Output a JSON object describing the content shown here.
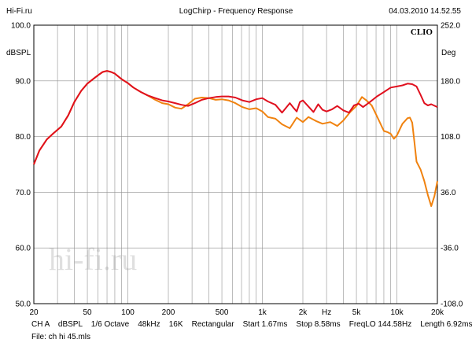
{
  "header": {
    "left": "Hi-Fi.ru",
    "center": "LogChirp - Frequency Response",
    "right": "04.03.2010 14.52.55"
  },
  "brand": "CLIO",
  "watermark": "hi-fi.ru",
  "footer": {
    "line1": "CH A    dBSPL    1/6 Octave    48kHz    16K    Rectangular    Start 1.67ms    Stop 8.58ms    FreqLO 144.58Hz    Length 6.92ms",
    "line2": "File: ch hi 45.mls"
  },
  "colors": {
    "series1": "#e0101e",
    "series2": "#f0820f",
    "grid": "#909090"
  },
  "chart_data": {
    "type": "line",
    "title": "LogChirp - Frequency Response",
    "x_scale": "log",
    "xlim": [
      20,
      20000
    ],
    "ylim": [
      50,
      100
    ],
    "y2lim": [
      -108,
      252
    ],
    "ylabel": "dBSPL",
    "y2label": "Deg",
    "x_tick_labels": [
      "20",
      "50",
      "100",
      "200",
      "500",
      "1k",
      "2k",
      "Hz",
      "5k",
      "10k",
      "20k"
    ],
    "x_tick_values": [
      20,
      50,
      100,
      200,
      500,
      1000,
      2000,
      3000,
      5000,
      10000,
      20000
    ],
    "y_tick_labels": [
      "100.0",
      "90.0",
      "80.0",
      "70.0",
      "60.0",
      "50.0"
    ],
    "y_tick_values": [
      100,
      90,
      80,
      70,
      60,
      50
    ],
    "y2_tick_labels": [
      "252.0",
      "180.0",
      "108.0",
      "36.0",
      "-36.0",
      "-108.0"
    ],
    "series": [
      {
        "name": "Red",
        "x": [
          20,
          22,
          25,
          28,
          32,
          36,
          40,
          45,
          50,
          55,
          60,
          65,
          70,
          75,
          80,
          90,
          100,
          110,
          125,
          140,
          160,
          180,
          200,
          225,
          250,
          280,
          315,
          355,
          400,
          450,
          500,
          560,
          630,
          710,
          800,
          900,
          1000,
          1100,
          1250,
          1400,
          1600,
          1700,
          1800,
          1900,
          2000,
          2200,
          2400,
          2600,
          2800,
          3000,
          3300,
          3600,
          4000,
          4400,
          4800,
          5200,
          5600,
          6300,
          7100,
          8000,
          9000,
          10000,
          11000,
          12000,
          13000,
          14000,
          15000,
          16000,
          17000,
          18000,
          20000
        ],
        "values": [
          75,
          77.5,
          79.5,
          80.6,
          81.8,
          83.8,
          86.2,
          88.2,
          89.5,
          90.3,
          91.0,
          91.6,
          91.8,
          91.6,
          91.3,
          90.3,
          89.6,
          88.8,
          88.0,
          87.4,
          86.9,
          86.5,
          86.3,
          86.0,
          85.7,
          85.5,
          86.0,
          86.6,
          86.9,
          87.1,
          87.2,
          87.2,
          87.0,
          86.5,
          86.2,
          86.7,
          86.9,
          86.3,
          85.7,
          84.3,
          86.0,
          85.2,
          84.5,
          86.2,
          86.5,
          85.4,
          84.4,
          85.8,
          84.8,
          84.5,
          84.9,
          85.5,
          84.7,
          84.3,
          85.6,
          85.9,
          85.3,
          86.2,
          87.2,
          88.0,
          88.8,
          89.0,
          89.2,
          89.5,
          89.4,
          89.0,
          87.5,
          86.0,
          85.6,
          85.8,
          85.3
        ]
      },
      {
        "name": "Orange",
        "x": [
          20,
          22,
          25,
          28,
          32,
          36,
          40,
          45,
          50,
          55,
          60,
          65,
          70,
          75,
          80,
          90,
          100,
          110,
          125,
          140,
          160,
          180,
          200,
          225,
          250,
          280,
          315,
          355,
          400,
          450,
          500,
          560,
          630,
          710,
          800,
          900,
          1000,
          1100,
          1250,
          1400,
          1600,
          1800,
          2000,
          2200,
          2500,
          2800,
          3200,
          3600,
          4000,
          4500,
          5000,
          5500,
          6000,
          6500,
          7000,
          8000,
          8500,
          9000,
          9500,
          10000,
          11000,
          12000,
          12500,
          13000,
          13500,
          14000,
          15000,
          16000,
          17000,
          18000,
          19000,
          20000
        ],
        "values": [
          75,
          77.5,
          79.5,
          80.6,
          81.8,
          83.8,
          86.2,
          88.2,
          89.5,
          90.3,
          91.0,
          91.6,
          91.8,
          91.6,
          91.3,
          90.3,
          89.6,
          88.8,
          88.0,
          87.4,
          86.6,
          86.0,
          85.8,
          85.2,
          85.0,
          85.8,
          86.8,
          87.0,
          86.9,
          86.6,
          86.7,
          86.5,
          86.0,
          85.3,
          84.9,
          85.1,
          84.5,
          83.5,
          83.2,
          82.2,
          81.5,
          83.4,
          82.6,
          83.5,
          82.8,
          82.3,
          82.6,
          81.9,
          82.9,
          84.4,
          85.5,
          87.1,
          86.4,
          85.6,
          84.0,
          81.0,
          80.8,
          80.5,
          79.6,
          80.2,
          82.3,
          83.3,
          83.4,
          82.5,
          79.0,
          75.5,
          74.1,
          72.0,
          69.5,
          67.5,
          69.3,
          72.0
        ]
      }
    ]
  }
}
